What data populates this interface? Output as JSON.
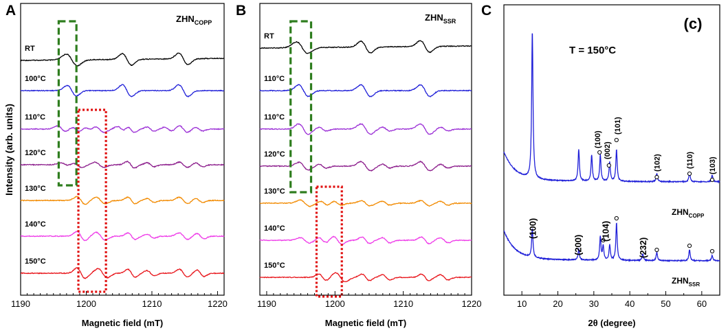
{
  "chart_data": [
    {
      "panel": "A",
      "type": "line",
      "title": "ZHN",
      "title_sub": "COPP",
      "xlabel": "Magnetic field (mT)",
      "ylabel": "Intensity (arb. units)",
      "xlim": [
        1190,
        1221
      ],
      "xticks": [
        1190,
        1200,
        1210,
        1220
      ],
      "series": [
        {
          "name": "RT",
          "color": "#000000",
          "features": [
            [
              1197.8,
              9,
              1.2
            ],
            [
              1206.2,
              9,
              1.0
            ],
            [
              1214.8,
              9,
              1.0
            ]
          ]
        },
        {
          "name": "100°C",
          "color": "#1f1fd8",
          "features": [
            [
              1197.8,
              8,
              1.0
            ],
            [
              1206.2,
              9,
              1.0
            ],
            [
              1214.8,
              9,
              1.0
            ]
          ]
        },
        {
          "name": "110°C",
          "color": "#9b2fd6",
          "features": [
            [
              1196.3,
              5,
              1.0
            ],
            [
              1198.4,
              4,
              1.0
            ],
            [
              1200.3,
              3,
              0.8
            ],
            [
              1202.0,
              5,
              1.0
            ],
            [
              1205.3,
              4,
              0.8
            ],
            [
              1206.8,
              5,
              0.8
            ],
            [
              1209.8,
              3,
              0.8
            ],
            [
              1212.5,
              3,
              0.8
            ],
            [
              1214.8,
              5,
              0.9
            ],
            [
              1217.2,
              3,
              0.8
            ]
          ]
        },
        {
          "name": "120°C",
          "color": "#8b1c8b",
          "features": [
            [
              1196.8,
              3,
              1.0
            ],
            [
              1198.6,
              4,
              1.0
            ],
            [
              1202.0,
              4,
              1.0
            ],
            [
              1206.8,
              5,
              0.8
            ],
            [
              1209.8,
              3,
              0.8
            ],
            [
              1214.8,
              4,
              0.9
            ],
            [
              1217.2,
              3,
              0.8
            ]
          ]
        },
        {
          "name": "130°C",
          "color": "#f28a00",
          "features": [
            [
              1199.2,
              6,
              0.9
            ],
            [
              1202.2,
              5,
              1.0
            ],
            [
              1206.9,
              5,
              0.8
            ],
            [
              1209.8,
              3,
              0.8
            ],
            [
              1214.8,
              5,
              0.9
            ],
            [
              1217.2,
              3,
              0.8
            ]
          ]
        },
        {
          "name": "140°C",
          "color": "#ee3ae8",
          "features": [
            [
              1199.2,
              7,
              0.9
            ],
            [
              1202.2,
              6,
              1.0
            ],
            [
              1206.9,
              5,
              0.8
            ],
            [
              1209.8,
              3,
              0.8
            ],
            [
              1214.8,
              5,
              0.9
            ],
            [
              1217.4,
              4,
              0.8
            ]
          ]
        },
        {
          "name": "150°C",
          "color": "#e8141a",
          "features": [
            [
              1199.2,
              8,
              0.9
            ],
            [
              1202.5,
              7,
              1.0
            ],
            [
              1206.9,
              6,
              0.8
            ],
            [
              1209.8,
              4,
              0.8
            ],
            [
              1214.8,
              6,
              0.9
            ],
            [
              1217.4,
              5,
              0.8
            ]
          ]
        }
      ],
      "boxes": [
        {
          "style": "green-dashed",
          "x": [
            1195.8,
            1198.5
          ]
        },
        {
          "style": "red-dotted",
          "x": [
            1198.8,
            1203.0
          ]
        }
      ]
    },
    {
      "panel": "B",
      "type": "line",
      "title": "ZHN",
      "title_sub": "SSR",
      "xlabel": "Magnetic field (mT)",
      "ylabel": "",
      "xlim": [
        1189,
        1220
      ],
      "xticks": [
        1190,
        1200,
        1210,
        1220
      ],
      "series": [
        {
          "name": "RT",
          "color": "#000000",
          "features": [
            [
              1195.2,
              9,
              1.2
            ],
            [
              1204.5,
              9,
              1.0
            ],
            [
              1213.2,
              9,
              1.0
            ]
          ]
        },
        {
          "name": "110°C",
          "color": "#1f1fd8",
          "features": [
            [
              1195.4,
              9,
              1.0
            ],
            [
              1204.5,
              9,
              1.0
            ],
            [
              1213.2,
              9,
              1.0
            ]
          ]
        },
        {
          "name": "110°C",
          "color": "#9b2fd6",
          "features": [
            [
              1195.4,
              8,
              1.0
            ],
            [
              1198.2,
              3,
              0.8
            ],
            [
              1204.5,
              8,
              1.0
            ],
            [
              1207.5,
              3,
              0.8
            ],
            [
              1213.2,
              8,
              1.0
            ],
            [
              1216.0,
              3,
              0.8
            ]
          ]
        },
        {
          "name": "120°C",
          "color": "#8b1c8b",
          "features": [
            [
              1195.4,
              6,
              1.0
            ],
            [
              1198.2,
              3,
              0.8
            ],
            [
              1204.5,
              7,
              1.0
            ],
            [
              1207.5,
              3,
              0.8
            ],
            [
              1213.2,
              7,
              1.0
            ],
            [
              1216.0,
              3,
              0.8
            ]
          ]
        },
        {
          "name": "130°C",
          "color": "#f28a00",
          "features": [
            [
              1195.6,
              5,
              1.0
            ],
            [
              1198.4,
              3,
              0.8
            ],
            [
              1200.4,
              3,
              0.8
            ],
            [
              1204.5,
              4,
              0.9
            ],
            [
              1207.5,
              3,
              0.8
            ],
            [
              1213.2,
              4,
              0.9
            ],
            [
              1216.0,
              3,
              0.8
            ]
          ]
        },
        {
          "name": "140°C",
          "color": "#ee3ae8",
          "features": [
            [
              1195.6,
              4,
              1.0
            ],
            [
              1198.2,
              4,
              0.8
            ],
            [
              1200.4,
              6,
              0.9
            ],
            [
              1204.5,
              5,
              0.8
            ],
            [
              1207.5,
              4,
              0.8
            ],
            [
              1213.2,
              5,
              0.8
            ],
            [
              1216.0,
              4,
              0.8
            ]
          ]
        },
        {
          "name": "150°C",
          "color": "#e8141a",
          "features": [
            [
              1198.2,
              5,
              0.8
            ],
            [
              1200.8,
              7,
              1.0
            ],
            [
              1204.5,
              5,
              0.8
            ],
            [
              1207.5,
              4,
              0.8
            ],
            [
              1213.2,
              5,
              0.8
            ],
            [
              1216.0,
              4,
              0.8
            ]
          ]
        }
      ],
      "boxes": [
        {
          "style": "green-dashed",
          "x": [
            1193.5,
            1196.5
          ]
        },
        {
          "style": "red-dotted",
          "x": [
            1197.3,
            1201.0
          ]
        }
      ]
    },
    {
      "panel": "C",
      "type": "line",
      "tag": "(c)",
      "annotation": "T = 150°C",
      "xlabel": "2θ (degree)",
      "ylabel": "",
      "xlim": [
        5,
        65
      ],
      "xticks": [
        10,
        20,
        30,
        40,
        50,
        60
      ],
      "series": [
        {
          "name": "ZHN",
          "name_sub": "COPP",
          "color": "#1f1fd8",
          "peaks": [
            [
              12.9,
              215
            ],
            [
              25.8,
              46
            ],
            [
              29.4,
              38
            ],
            [
              31.8,
              38
            ],
            [
              34.4,
              28
            ],
            [
              36.3,
              46
            ],
            [
              47.5,
              12
            ],
            [
              56.6,
              14
            ],
            [
              62.9,
              10
            ]
          ]
        },
        {
          "name": "ZHN",
          "name_sub": "SSR",
          "color": "#1f1fd8",
          "peaks": [
            [
              12.9,
              42
            ],
            [
              25.8,
              16
            ],
            [
              31.8,
              34
            ],
            [
              32.6,
              20
            ],
            [
              34.4,
              22
            ],
            [
              36.3,
              54
            ],
            [
              43.6,
              10
            ],
            [
              47.5,
              12
            ],
            [
              56.6,
              16
            ],
            [
              62.9,
              8
            ]
          ]
        }
      ],
      "peak_labels_top": [
        {
          "text": "(100)",
          "x": 31.0
        },
        {
          "text": "(002)",
          "x": 33.7
        },
        {
          "text": "(101)",
          "x": 36.5
        },
        {
          "text": "(102)",
          "x": 47.5
        },
        {
          "text": "(110)",
          "x": 56.6
        },
        {
          "text": "(103)",
          "x": 62.9
        }
      ],
      "peak_labels_bottom": [
        {
          "text": "(100)",
          "x": 12.9
        },
        {
          "text": "(200)",
          "x": 25.5
        },
        {
          "text": "(104)",
          "x": 33.2
        },
        {
          "text": "(232)",
          "x": 43.6
        }
      ],
      "circle_markers_top_x": [
        31.6,
        34.2,
        36.3,
        47.5,
        56.6,
        62.9
      ],
      "circle_markers_bottom_x": [
        32.6,
        36.3,
        47.5,
        56.6,
        62.9
      ]
    }
  ],
  "panel_letters": [
    "A",
    "B",
    "C"
  ]
}
